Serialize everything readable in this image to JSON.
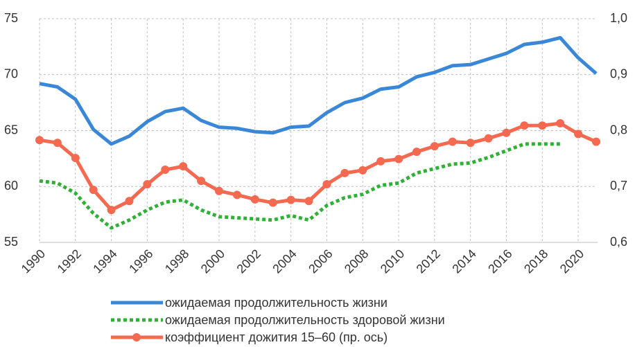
{
  "chart_data": {
    "type": "line",
    "x": [
      1990,
      1991,
      1992,
      1993,
      1994,
      1995,
      1996,
      1997,
      1998,
      1999,
      2000,
      2001,
      2002,
      2003,
      2004,
      2005,
      2006,
      2007,
      2008,
      2009,
      2010,
      2011,
      2012,
      2013,
      2014,
      2015,
      2016,
      2017,
      2018,
      2019,
      2020,
      2021
    ],
    "xlim": [
      1990,
      2021
    ],
    "xticks": [
      1990,
      1992,
      1994,
      1996,
      1998,
      2000,
      2002,
      2004,
      2006,
      2008,
      2010,
      2012,
      2014,
      2016,
      2018,
      2020
    ],
    "ylim": [
      55,
      75
    ],
    "yticks": [
      55,
      60,
      65,
      70,
      75
    ],
    "y2lim": [
      0.6,
      1.0
    ],
    "y2ticks": [
      {
        "value": 0.6,
        "label": "0,6"
      },
      {
        "value": 0.7,
        "label": "0,7"
      },
      {
        "value": 0.8,
        "label": "0,8"
      },
      {
        "value": 0.9,
        "label": "0,9"
      },
      {
        "value": 1.0,
        "label": "1,0"
      }
    ],
    "grid": true,
    "series": [
      {
        "name": "ожидаемая продолжительность жизни",
        "color": "#3a87d8",
        "line_style": "solid",
        "values": [
          69.2,
          68.9,
          67.8,
          65.1,
          63.8,
          64.5,
          65.8,
          66.7,
          67.0,
          65.9,
          65.3,
          65.2,
          64.9,
          64.8,
          65.3,
          65.4,
          66.6,
          67.5,
          67.9,
          68.7,
          68.9,
          69.8,
          70.2,
          70.8,
          70.9,
          71.4,
          71.9,
          72.7,
          72.9,
          73.3,
          71.5,
          70.1
        ]
      },
      {
        "name": "ожидаемая продолжительность здоровой жизни",
        "color": "#2eb135",
        "line_style": "dotted",
        "values": [
          60.5,
          60.3,
          59.4,
          57.6,
          56.3,
          57.0,
          57.9,
          58.6,
          58.8,
          57.9,
          57.3,
          57.2,
          57.1,
          57.0,
          57.4,
          57.0,
          58.3,
          59.0,
          59.3,
          60.1,
          60.3,
          61.2,
          61.6,
          62.0,
          62.1,
          62.6,
          63.2,
          63.8,
          63.8,
          63.8,
          null,
          null
        ]
      },
      {
        "name": "коэффициент дожития 15–60 (пр. ось)",
        "color": "#f4694f",
        "line_style": "solid",
        "marker": "circle",
        "axis": "y2",
        "values": [
          0.783,
          0.778,
          0.751,
          0.694,
          0.658,
          0.674,
          0.704,
          0.73,
          0.736,
          0.71,
          0.692,
          0.685,
          0.677,
          0.671,
          0.676,
          0.674,
          0.704,
          0.724,
          0.729,
          0.745,
          0.749,
          0.762,
          0.772,
          0.78,
          0.778,
          0.786,
          0.796,
          0.809,
          0.809,
          0.813,
          0.794,
          0.78
        ]
      }
    ]
  }
}
